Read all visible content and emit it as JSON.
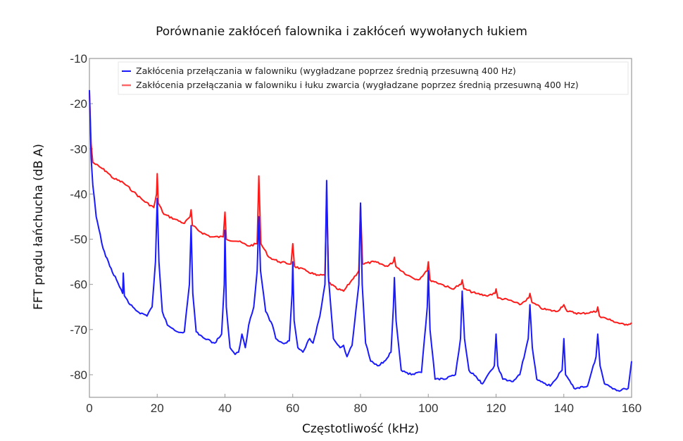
{
  "chart_data": {
    "type": "line",
    "title": "Porównanie zakłóceń falownika i zakłóceń wywołanych łukiem",
    "xlabel": "Częstotliwość (kHz)",
    "ylabel": "FFT prądu łańchucha (dB A)",
    "xlim": [
      0,
      160
    ],
    "ylim": [
      -85,
      -10
    ],
    "xticks": [
      "0",
      "20",
      "40",
      "60",
      "80",
      "100",
      "120",
      "140",
      "160"
    ],
    "yticks": [
      "-10",
      "-20",
      "-30",
      "-40",
      "-50",
      "-60",
      "-70",
      "-80"
    ],
    "grid": false,
    "legend_position": "top",
    "series": [
      {
        "name": "Zakłócenia przełączania w falowniku (wygładzane poprzez średnią przesuwną 400 Hz)",
        "color": "#1a1aff",
        "points": [
          [
            0,
            -17
          ],
          [
            0.5,
            -32
          ],
          [
            1,
            -38
          ],
          [
            2,
            -45
          ],
          [
            4,
            -52
          ],
          [
            6,
            -56
          ],
          [
            8,
            -59
          ],
          [
            9.8,
            -62
          ],
          [
            10,
            -57.5
          ],
          [
            10.3,
            -62.5
          ],
          [
            12,
            -64.5
          ],
          [
            15,
            -66.5
          ],
          [
            17,
            -67
          ],
          [
            18.5,
            -65
          ],
          [
            19.5,
            -55
          ],
          [
            20,
            -41
          ],
          [
            20.5,
            -55
          ],
          [
            21.5,
            -66
          ],
          [
            23,
            -69
          ],
          [
            26,
            -70.5
          ],
          [
            28,
            -70.5
          ],
          [
            29.5,
            -60
          ],
          [
            30,
            -47
          ],
          [
            30.5,
            -62
          ],
          [
            31.5,
            -70.5
          ],
          [
            34,
            -72
          ],
          [
            37,
            -73
          ],
          [
            39,
            -71
          ],
          [
            39.8,
            -60
          ],
          [
            40,
            -48
          ],
          [
            40.4,
            -65
          ],
          [
            41.5,
            -74
          ],
          [
            43,
            -75.5
          ],
          [
            44,
            -75
          ],
          [
            45,
            -71
          ],
          [
            46,
            -74
          ],
          [
            47,
            -69
          ],
          [
            48.5,
            -65
          ],
          [
            49.5,
            -57
          ],
          [
            50,
            -45
          ],
          [
            50.5,
            -57
          ],
          [
            52,
            -66
          ],
          [
            54,
            -69
          ],
          [
            55,
            -72
          ],
          [
            57,
            -73
          ],
          [
            59,
            -72.5
          ],
          [
            59.8,
            -62
          ],
          [
            60,
            -55
          ],
          [
            60.4,
            -68
          ],
          [
            61.5,
            -74
          ],
          [
            63,
            -75
          ],
          [
            65,
            -72
          ],
          [
            66,
            -73
          ],
          [
            68,
            -67
          ],
          [
            69.5,
            -60
          ],
          [
            70,
            -37
          ],
          [
            70.5,
            -58
          ],
          [
            72,
            -72
          ],
          [
            74,
            -74
          ],
          [
            75,
            -73.5
          ],
          [
            76,
            -76
          ],
          [
            77.5,
            -73.5
          ],
          [
            79.5,
            -60
          ],
          [
            80,
            -42
          ],
          [
            80.5,
            -60
          ],
          [
            81.5,
            -73
          ],
          [
            83,
            -77
          ],
          [
            85,
            -78
          ],
          [
            87,
            -77
          ],
          [
            89,
            -75
          ],
          [
            89.7,
            -65
          ],
          [
            90,
            -58.5
          ],
          [
            90.5,
            -68
          ],
          [
            92,
            -79
          ],
          [
            95,
            -80
          ],
          [
            98,
            -79.5
          ],
          [
            99.7,
            -65
          ],
          [
            100,
            -57
          ],
          [
            100.5,
            -70
          ],
          [
            102,
            -81
          ],
          [
            105,
            -81
          ],
          [
            108,
            -80
          ],
          [
            109.5,
            -72
          ],
          [
            110,
            -61.5
          ],
          [
            110.7,
            -72
          ],
          [
            112,
            -79
          ],
          [
            116,
            -82
          ],
          [
            119.5,
            -78
          ],
          [
            120,
            -71
          ],
          [
            120.5,
            -78
          ],
          [
            122,
            -81
          ],
          [
            125,
            -81.5
          ],
          [
            127,
            -80
          ],
          [
            129.5,
            -72
          ],
          [
            130,
            -64.5
          ],
          [
            130.7,
            -74
          ],
          [
            132,
            -81
          ],
          [
            136,
            -82.5
          ],
          [
            139.5,
            -79
          ],
          [
            140,
            -72
          ],
          [
            140.5,
            -80
          ],
          [
            143,
            -83
          ],
          [
            147,
            -82.5
          ],
          [
            149.5,
            -76
          ],
          [
            150,
            -71
          ],
          [
            150.7,
            -78
          ],
          [
            152,
            -82
          ],
          [
            156,
            -83.5
          ],
          [
            159,
            -83
          ],
          [
            160,
            -77
          ]
        ]
      },
      {
        "name": "Zakłócenia przełączania w falowniku i łuku zwarcia (wygładzane poprzez średnią przesuwną 400 Hz)",
        "color": "#ff1a1a",
        "points": [
          [
            0,
            -17.5
          ],
          [
            0.5,
            -29
          ],
          [
            1,
            -33
          ],
          [
            3,
            -34
          ],
          [
            5,
            -35
          ],
          [
            7,
            -36.5
          ],
          [
            10,
            -37.5
          ],
          [
            13,
            -39.5
          ],
          [
            16,
            -41.5
          ],
          [
            19,
            -43
          ],
          [
            19.8,
            -40
          ],
          [
            20,
            -35.5
          ],
          [
            20.3,
            -42
          ],
          [
            22,
            -44.5
          ],
          [
            25,
            -45.5
          ],
          [
            28,
            -46.5
          ],
          [
            29.7,
            -45
          ],
          [
            30,
            -43.5
          ],
          [
            30.4,
            -47
          ],
          [
            33,
            -48.5
          ],
          [
            36,
            -49.5
          ],
          [
            39.5,
            -49.5
          ],
          [
            40,
            -44
          ],
          [
            40.4,
            -50
          ],
          [
            44,
            -50.5
          ],
          [
            47,
            -51.5
          ],
          [
            49.5,
            -51
          ],
          [
            50,
            -36
          ],
          [
            50.6,
            -51
          ],
          [
            53,
            -54
          ],
          [
            56,
            -55
          ],
          [
            59.5,
            -55.5
          ],
          [
            60,
            -51
          ],
          [
            60.5,
            -56
          ],
          [
            64,
            -57
          ],
          [
            67,
            -58
          ],
          [
            69.5,
            -58
          ],
          [
            70,
            -39.5
          ],
          [
            70.6,
            -59.5
          ],
          [
            73,
            -61
          ],
          [
            75,
            -61.5
          ],
          [
            77,
            -59.5
          ],
          [
            79.5,
            -57
          ],
          [
            80,
            -42.5
          ],
          [
            80.6,
            -55.5
          ],
          [
            84,
            -55
          ],
          [
            88,
            -56
          ],
          [
            89.7,
            -55
          ],
          [
            90,
            -54
          ],
          [
            90.4,
            -56
          ],
          [
            94,
            -58
          ],
          [
            97,
            -59
          ],
          [
            99.7,
            -57
          ],
          [
            100,
            -55
          ],
          [
            100.5,
            -59
          ],
          [
            104,
            -60
          ],
          [
            107,
            -61
          ],
          [
            109.7,
            -60
          ],
          [
            110,
            -59
          ],
          [
            110.5,
            -61
          ],
          [
            114,
            -62
          ],
          [
            117,
            -62.5
          ],
          [
            119.7,
            -62
          ],
          [
            120,
            -61
          ],
          [
            120.5,
            -63
          ],
          [
            124,
            -63.5
          ],
          [
            127,
            -64.5
          ],
          [
            129.7,
            -63
          ],
          [
            130,
            -62
          ],
          [
            130.6,
            -64
          ],
          [
            134,
            -65.5
          ],
          [
            138,
            -66
          ],
          [
            140,
            -64.5
          ],
          [
            141,
            -66
          ],
          [
            145,
            -66.5
          ],
          [
            149.7,
            -66
          ],
          [
            150,
            -65
          ],
          [
            150.5,
            -67
          ],
          [
            154,
            -68
          ],
          [
            158,
            -69
          ],
          [
            160,
            -68.5
          ]
        ]
      }
    ]
  }
}
